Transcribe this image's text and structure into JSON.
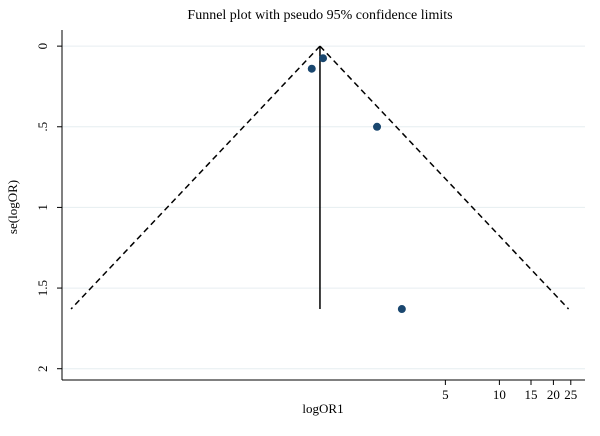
{
  "chart_data": {
    "type": "funnel",
    "title": "Funnel plot with pseudo 95% confidence limits",
    "x_label": "logOR1",
    "y_label": "se(logOR)",
    "x_scale": "log",
    "xlim": [
      0.0365,
      30
    ],
    "xticks": [
      5,
      10,
      15,
      20,
      25
    ],
    "ylim": [
      2.07,
      -0.1
    ],
    "yticks": [
      0,
      {
        "value": 0.5,
        "label": ".5"
      },
      1,
      1.5,
      2
    ],
    "grid": true,
    "points": {
      "color": "#1a476f",
      "x": [
        0.9,
        1.04,
        2.08,
        2.86
      ],
      "y": [
        0.14,
        0.075,
        0.5,
        1.63
      ]
    },
    "pooled_line": {
      "color": "#000000",
      "x": [
        1,
        1
      ],
      "y": [
        0,
        1.63
      ]
    },
    "lower_limit": {
      "color": "#000000",
      "x": [
        1,
        0.041
      ],
      "y": [
        0,
        1.63
      ]
    },
    "upper_limit": {
      "color": "#000000",
      "x": [
        1,
        24.3
      ],
      "y": [
        0,
        1.63
      ]
    }
  }
}
